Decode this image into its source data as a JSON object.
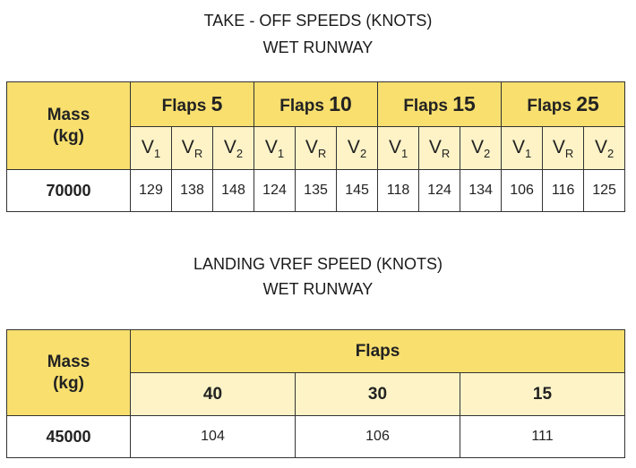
{
  "takeoff": {
    "title_line1": "TAKE - OFF SPEEDS (KNOTS)",
    "title_line2": "WET RUNWAY",
    "mass_label_1": "Mass",
    "mass_label_2": "(kg)",
    "flaps_word": "Flaps",
    "groups": [
      {
        "flaps": "5"
      },
      {
        "flaps": "10"
      },
      {
        "flaps": "15"
      },
      {
        "flaps": "25"
      }
    ],
    "speed_labels": [
      {
        "base": "V",
        "sub": "1"
      },
      {
        "base": "V",
        "sub": "R"
      },
      {
        "base": "V",
        "sub": "2"
      }
    ],
    "mass": "70000",
    "values": [
      "129",
      "138",
      "148",
      "124",
      "135",
      "145",
      "118",
      "124",
      "134",
      "106",
      "116",
      "125"
    ]
  },
  "landing": {
    "title_line1": "LANDING VREF SPEED (KNOTS)",
    "title_line2": "WET RUNWAY",
    "mass_label_1": "Mass",
    "mass_label_2": "(kg)",
    "flaps_header": "Flaps",
    "flaps": [
      "40",
      "30",
      "15"
    ],
    "mass": "45000",
    "values": [
      "104",
      "106",
      "111"
    ]
  },
  "colors": {
    "header_yellow": "#f8df6e",
    "subheader_yellow": "#fdf3c7"
  }
}
